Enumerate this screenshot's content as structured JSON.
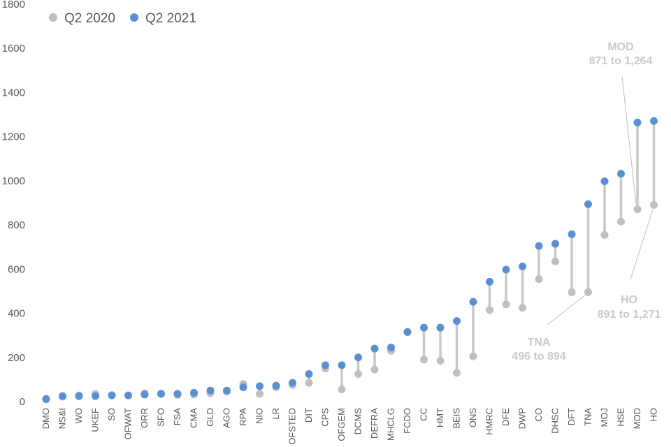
{
  "chart_data": {
    "type": "dumbbell",
    "title": "",
    "xlabel": "",
    "ylabel": "",
    "ylim": [
      0,
      1800
    ],
    "yticks": [
      0,
      200,
      400,
      600,
      800,
      1000,
      1200,
      1400,
      1600,
      1800
    ],
    "grid": false,
    "legend_position": "top-left",
    "categories": [
      "DMO",
      "NS&I",
      "WO",
      "UKEF",
      "SO",
      "OFWAT",
      "ORR",
      "SFO",
      "FSA",
      "CMA",
      "GLD",
      "AGO",
      "RPA",
      "NIO",
      "LR",
      "OFSTED",
      "DIT",
      "CPS",
      "OFGEM",
      "DCMS",
      "DEFRA",
      "MHCLG",
      "FCDO",
      "CC",
      "HMT",
      "BEIS",
      "ONS",
      "HMRC",
      "DFE",
      "DWP",
      "CO",
      "DHSC",
      "DFT",
      "TNA",
      "MOJ",
      "HSE",
      "MOD",
      "HO"
    ],
    "series": [
      {
        "name": "Q2 2020",
        "color": "#bfbfbf",
        "values": [
          10,
          22,
          28,
          35,
          30,
          28,
          38,
          36,
          30,
          32,
          38,
          45,
          80,
          35,
          65,
          75,
          85,
          150,
          55,
          125,
          145,
          230,
          315,
          190,
          185,
          130,
          205,
          415,
          440,
          425,
          555,
          635,
          495,
          496,
          755,
          815,
          871,
          891
        ]
      },
      {
        "name": "Q2 2021",
        "color": "#5b8fd4",
        "values": [
          12,
          25,
          25,
          25,
          28,
          28,
          32,
          35,
          35,
          40,
          50,
          50,
          65,
          70,
          72,
          85,
          125,
          165,
          165,
          200,
          240,
          245,
          315,
          335,
          335,
          365,
          452,
          543,
          598,
          612,
          705,
          715,
          758,
          894,
          998,
          1032,
          1264,
          1271
        ]
      }
    ],
    "connector_color": "#c9c9c9",
    "annotations": [
      {
        "target": "MOD",
        "label": "MOD",
        "detail": "871 to 1,264"
      },
      {
        "target": "TNA",
        "label": "TNA",
        "detail": "496 to 894"
      },
      {
        "target": "HO",
        "label": "HO",
        "detail": "891 to 1,271"
      }
    ]
  }
}
